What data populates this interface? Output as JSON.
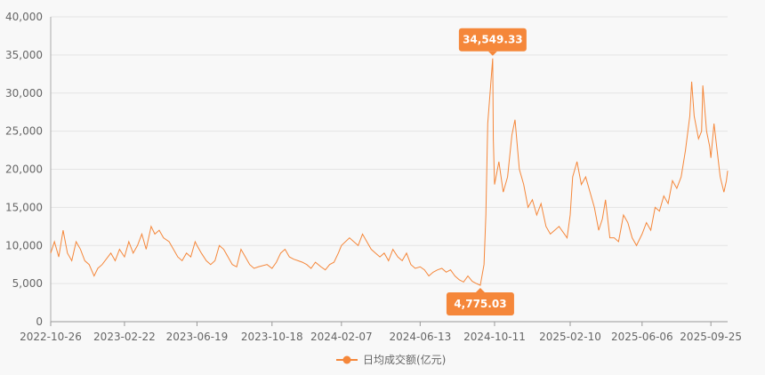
{
  "chart_data": {
    "type": "line",
    "x": [
      "2022-10-26",
      "2022-11-01",
      "2022-11-08",
      "2022-11-15",
      "2022-11-22",
      "2022-11-29",
      "2022-12-06",
      "2022-12-13",
      "2022-12-20",
      "2022-12-27",
      "2023-01-04",
      "2023-01-10",
      "2023-01-17",
      "2023-01-31",
      "2023-02-07",
      "2023-02-14",
      "2023-02-22",
      "2023-03-01",
      "2023-03-08",
      "2023-03-15",
      "2023-03-22",
      "2023-03-29",
      "2023-04-06",
      "2023-04-12",
      "2023-04-19",
      "2023-04-26",
      "2023-05-05",
      "2023-05-12",
      "2023-05-19",
      "2023-05-26",
      "2023-06-02",
      "2023-06-09",
      "2023-06-16",
      "2023-06-19",
      "2023-06-26",
      "2023-07-04",
      "2023-07-11",
      "2023-07-18",
      "2023-07-25",
      "2023-08-01",
      "2023-08-08",
      "2023-08-15",
      "2023-08-22",
      "2023-08-29",
      "2023-09-05",
      "2023-09-12",
      "2023-09-19",
      "2023-09-26",
      "2023-10-10",
      "2023-10-18",
      "2023-10-25",
      "2023-11-01",
      "2023-11-08",
      "2023-11-15",
      "2023-11-22",
      "2023-11-29",
      "2023-12-06",
      "2023-12-13",
      "2023-12-20",
      "2023-12-27",
      "2024-01-05",
      "2024-01-12",
      "2024-01-19",
      "2024-01-26",
      "2024-02-02",
      "2024-02-07",
      "2024-02-20",
      "2024-02-27",
      "2024-03-05",
      "2024-03-12",
      "2024-03-19",
      "2024-03-26",
      "2024-04-02",
      "2024-04-09",
      "2024-04-16",
      "2024-04-23",
      "2024-04-30",
      "2024-05-08",
      "2024-05-15",
      "2024-05-22",
      "2024-05-29",
      "2024-06-05",
      "2024-06-13",
      "2024-06-20",
      "2024-06-27",
      "2024-07-04",
      "2024-07-11",
      "2024-07-18",
      "2024-07-25",
      "2024-08-01",
      "2024-08-08",
      "2024-08-15",
      "2024-08-22",
      "2024-08-29",
      "2024-09-05",
      "2024-09-12",
      "2024-09-18",
      "2024-09-24",
      "2024-09-27",
      "2024-09-30",
      "2024-10-08",
      "2024-10-09",
      "2024-10-11",
      "2024-10-18",
      "2024-10-25",
      "2024-11-01",
      "2024-11-08",
      "2024-11-13",
      "2024-11-20",
      "2024-11-27",
      "2024-12-04",
      "2024-12-11",
      "2024-12-18",
      "2024-12-25",
      "2025-01-02",
      "2025-01-09",
      "2025-01-16",
      "2025-01-23",
      "2025-02-05",
      "2025-02-10",
      "2025-02-14",
      "2025-02-21",
      "2025-02-28",
      "2025-03-07",
      "2025-03-14",
      "2025-03-21",
      "2025-03-28",
      "2025-04-03",
      "2025-04-08",
      "2025-04-15",
      "2025-04-22",
      "2025-04-29",
      "2025-05-07",
      "2025-05-14",
      "2025-05-21",
      "2025-05-28",
      "2025-06-06",
      "2025-06-13",
      "2025-06-20",
      "2025-06-27",
      "2025-07-04",
      "2025-07-11",
      "2025-07-18",
      "2025-07-25",
      "2025-08-01",
      "2025-08-08",
      "2025-08-15",
      "2025-08-22",
      "2025-08-25",
      "2025-08-29",
      "2025-09-05",
      "2025-09-10",
      "2025-09-12",
      "2025-09-18",
      "2025-09-23",
      "2025-09-25",
      "2025-09-30",
      "2025-10-10",
      "2025-10-16",
      "2025-10-20",
      "2025-10-22"
    ],
    "series": [
      {
        "name": "日均成交额(亿元)",
        "color": "#f5873a",
        "values": [
          9000,
          10500,
          8500,
          12000,
          9000,
          8000,
          10500,
          9500,
          8000,
          7500,
          6000,
          7000,
          7500,
          9000,
          8000,
          9500,
          8500,
          10500,
          9000,
          10000,
          11500,
          9500,
          12500,
          11500,
          12000,
          11000,
          10500,
          9500,
          8500,
          8000,
          9000,
          8500,
          10500,
          10000,
          9000,
          8000,
          7500,
          8000,
          10000,
          9500,
          8500,
          7500,
          7200,
          9500,
          8500,
          7500,
          7000,
          7200,
          7500,
          7000,
          7800,
          9000,
          9500,
          8500,
          8200,
          8000,
          7800,
          7500,
          7000,
          7800,
          7200,
          6800,
          7500,
          7800,
          9000,
          10000,
          11000,
          10500,
          10000,
          11500,
          10500,
          9500,
          9000,
          8500,
          9000,
          8000,
          9500,
          8500,
          8000,
          9000,
          7500,
          7000,
          7200,
          6800,
          6000,
          6500,
          6800,
          7000,
          6500,
          6800,
          6000,
          5500,
          5200,
          6000,
          5300,
          5000,
          4775.03,
          7500,
          14000,
          26000,
          34549.33,
          24000,
          18000,
          21000,
          17000,
          19000,
          24500,
          26500,
          20000,
          18000,
          15000,
          16000,
          14000,
          15500,
          12500,
          11500,
          12000,
          12500,
          11000,
          14000,
          19000,
          21000,
          18000,
          19000,
          17000,
          15000,
          12000,
          13500,
          16000,
          11000,
          11000,
          10500,
          14000,
          13000,
          11000,
          10000,
          11500,
          13000,
          12000,
          15000,
          14500,
          16500,
          15500,
          18500,
          17500,
          19000,
          22500,
          27000,
          31500,
          27000,
          24000,
          25000,
          31000,
          25000,
          23000,
          21500,
          26000,
          19000,
          17000,
          18500,
          19800
        ]
      }
    ],
    "xlim": [
      "2022-10-26",
      "2025-10-22"
    ],
    "xticks": [
      "2022-10-26",
      "2023-02-22",
      "2023-06-19",
      "2023-10-18",
      "2024-02-07",
      "2024-06-13",
      "2024-10-11",
      "2025-02-10",
      "2025-06-06",
      "2025-09-25"
    ],
    "ylim": [
      0,
      40000
    ],
    "yticks": [
      0,
      {
        "value": 5000,
        "label": "5,000"
      },
      {
        "value": 10000,
        "label": "10,000"
      },
      {
        "value": 15000,
        "label": "15,000"
      },
      {
        "value": 20000,
        "label": "20,000"
      },
      {
        "value": 25000,
        "label": "25,000"
      },
      {
        "value": 30000,
        "label": "30,000"
      },
      {
        "value": 35000,
        "label": "35,000"
      },
      {
        "value": 40000,
        "label": "40,000"
      }
    ],
    "grid": true,
    "legend": "bottom",
    "annotations": [
      {
        "x": "2024-10-08",
        "value": 34549.33,
        "label": "34,549.33",
        "position": "above"
      },
      {
        "x": "2024-09-18",
        "value": 4775.03,
        "label": "4,775.03",
        "position": "below"
      }
    ]
  }
}
